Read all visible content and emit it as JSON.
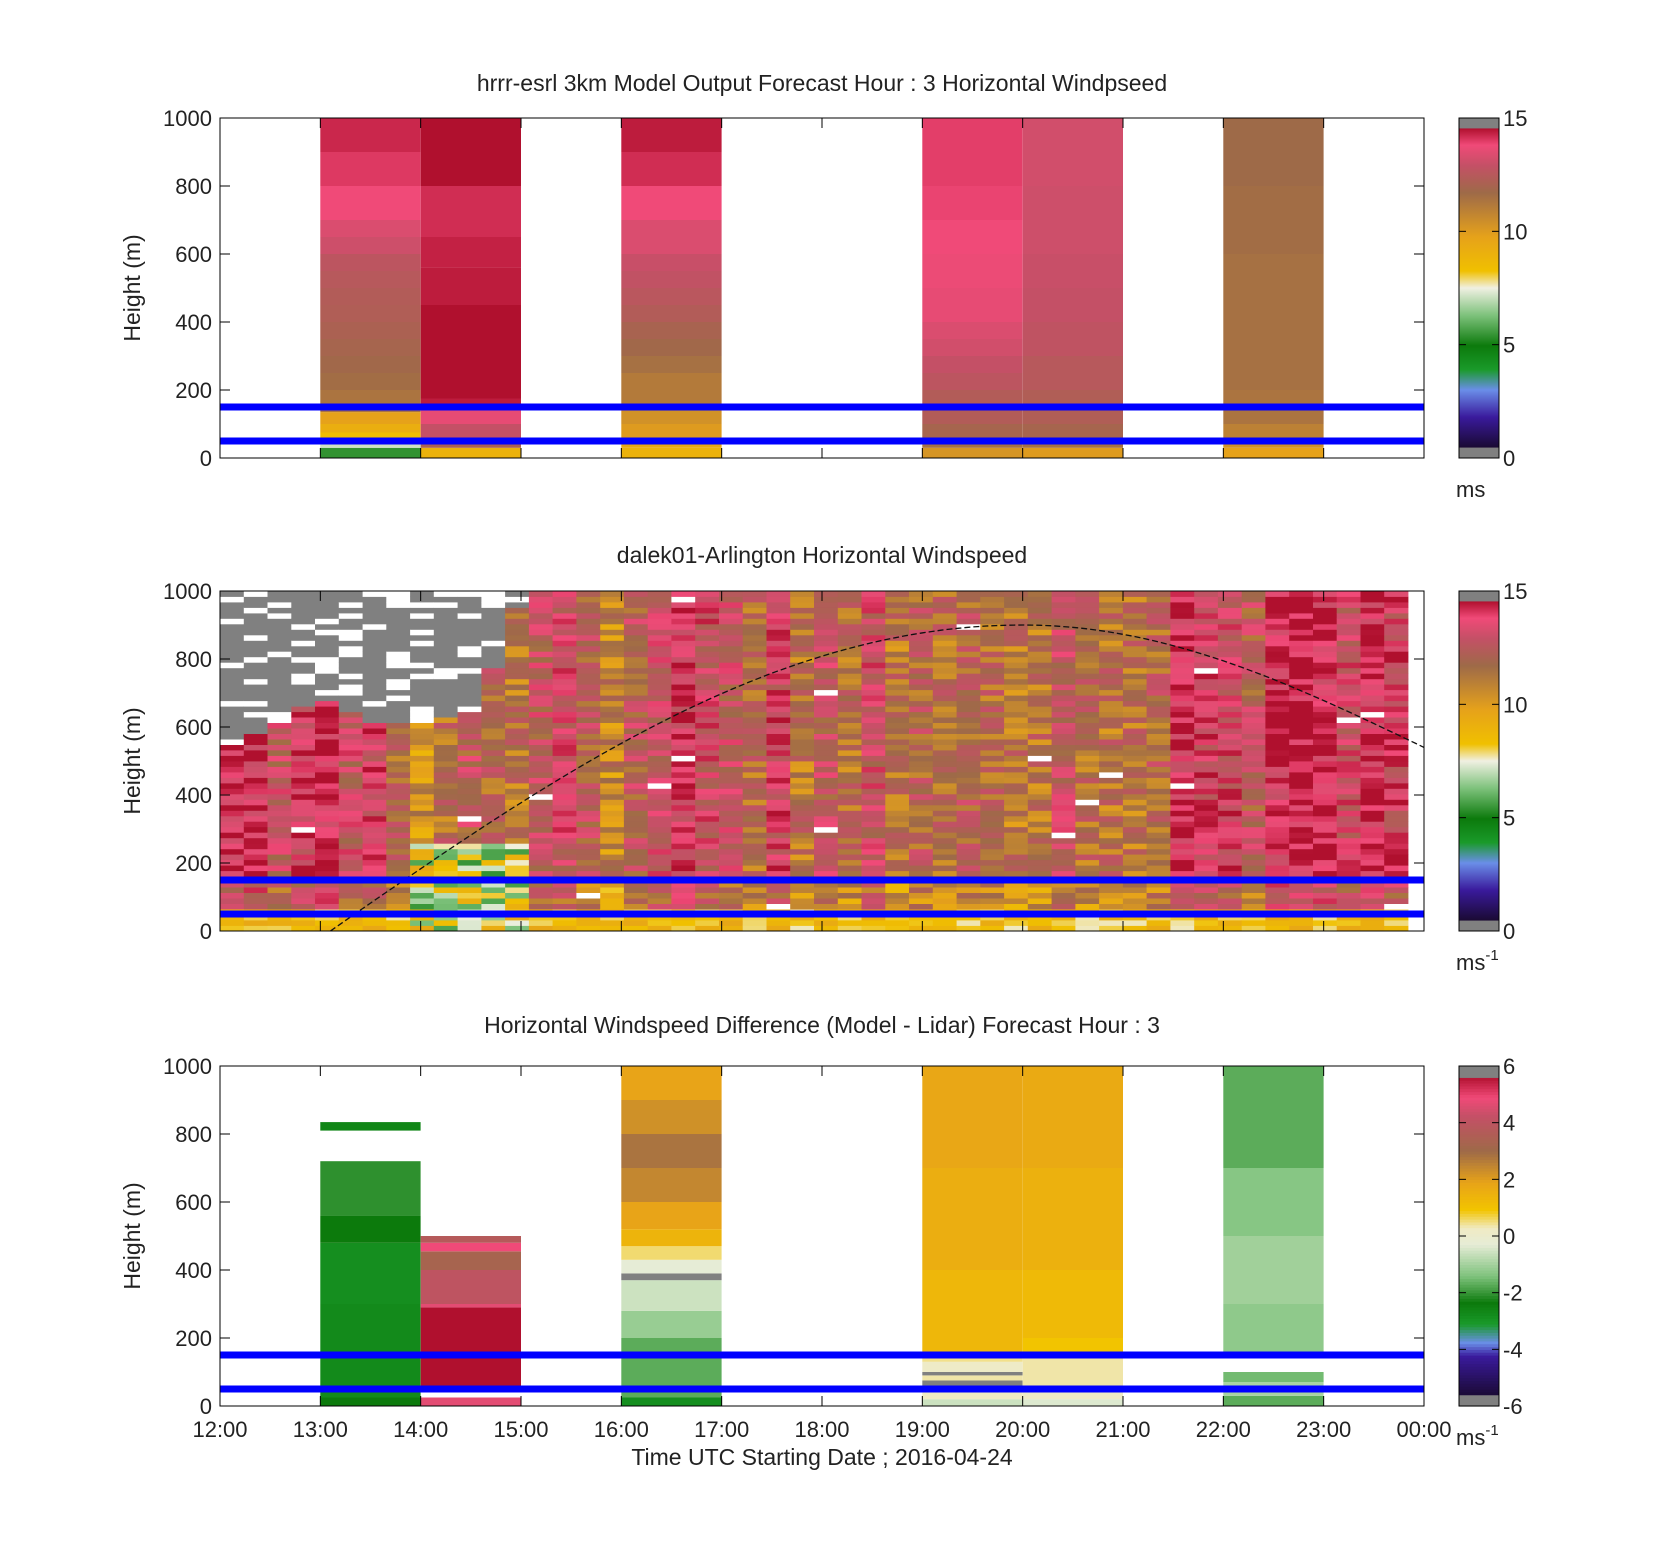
{
  "time_axis": {
    "ticks": [
      "12:00",
      "13:00",
      "14:00",
      "15:00",
      "16:00",
      "17:00",
      "18:00",
      "19:00",
      "20:00",
      "21:00",
      "22:00",
      "23:00",
      "00:00"
    ],
    "label": "Time UTC  Starting Date ; 2016-04-24"
  },
  "reference_lines": {
    "heights_m": [
      50,
      150
    ],
    "color": "#0000ff"
  },
  "chart_data": [
    {
      "type": "heatmap",
      "title": "hrrr-esrl 3km Model Output   Forecast Hour : 3 Horizontal Windpseed",
      "ylabel": "Height (m)",
      "ylim": [
        0,
        1000
      ],
      "yticks": [
        0,
        200,
        400,
        600,
        800,
        1000
      ],
      "xlim": [
        12,
        24
      ],
      "colorbar": {
        "ticks": [
          0,
          5,
          10,
          15
        ],
        "range": [
          0,
          15
        ],
        "unit": "ms",
        "unit_sup": ""
      },
      "columns": [
        {
          "start": 13,
          "end": 14,
          "rows": [
            [
              30,
              5.5
            ],
            [
              50,
              7.2
            ],
            [
              75,
              8.5
            ],
            [
              100,
              9.2
            ],
            [
              135,
              9.8
            ],
            [
              200,
              11.2
            ],
            [
              250,
              11.4
            ],
            [
              300,
              11.6
            ],
            [
              350,
              11.8
            ],
            [
              400,
              12.0
            ],
            [
              450,
              12.2
            ],
            [
              500,
              12.3
            ],
            [
              550,
              12.5
            ],
            [
              600,
              12.7
            ],
            [
              650,
              13.2
            ],
            [
              700,
              13.5
            ],
            [
              800,
              14.0
            ],
            [
              900,
              14.3
            ],
            [
              1000,
              14.6
            ]
          ]
        },
        {
          "start": 14,
          "end": 15,
          "rows": [
            [
              30,
              9.0
            ],
            [
              60,
              12.0
            ],
            [
              100,
              13.0
            ],
            [
              140,
              13.8
            ],
            [
              175,
              14.8
            ],
            [
              450,
              15.5
            ],
            [
              560,
              14.8
            ],
            [
              650,
              14.7
            ],
            [
              800,
              14.5
            ],
            [
              1000,
              15.5
            ]
          ]
        },
        {
          "start": 16,
          "end": 17,
          "rows": [
            [
              30,
              9.0
            ],
            [
              60,
              9.5
            ],
            [
              100,
              10.0
            ],
            [
              140,
              10.3
            ],
            [
              250,
              11.0
            ],
            [
              300,
              11.3
            ],
            [
              350,
              11.6
            ],
            [
              400,
              11.9
            ],
            [
              450,
              12.3
            ],
            [
              500,
              12.6
            ],
            [
              550,
              12.9
            ],
            [
              600,
              13.1
            ],
            [
              700,
              13.5
            ],
            [
              800,
              14.0
            ],
            [
              900,
              14.5
            ],
            [
              1000,
              14.8
            ]
          ]
        },
        {
          "start": 19,
          "end": 20,
          "rows": [
            [
              30,
              10.2
            ],
            [
              60,
              11.3
            ],
            [
              100,
              11.8
            ],
            [
              200,
              12.3
            ],
            [
              250,
              12.7
            ],
            [
              300,
              13.0
            ],
            [
              350,
              13.3
            ],
            [
              400,
              13.5
            ],
            [
              500,
              13.8
            ],
            [
              600,
              13.9
            ],
            [
              700,
              14.0
            ],
            [
              800,
              14.1
            ],
            [
              1000,
              14.2
            ]
          ]
        },
        {
          "start": 20,
          "end": 21,
          "rows": [
            [
              30,
              10.0
            ],
            [
              60,
              11.3
            ],
            [
              100,
              11.8
            ],
            [
              200,
              12.2
            ],
            [
              300,
              12.5
            ],
            [
              400,
              12.8
            ],
            [
              500,
              13.0
            ],
            [
              600,
              13.1
            ],
            [
              800,
              13.2
            ],
            [
              1000,
              13.3
            ]
          ]
        },
        {
          "start": 22,
          "end": 23,
          "rows": [
            [
              30,
              9.8
            ],
            [
              60,
              10.3
            ],
            [
              100,
              10.8
            ],
            [
              200,
              11.2
            ],
            [
              600,
              11.3
            ],
            [
              800,
              11.4
            ],
            [
              1000,
              11.5
            ]
          ]
        }
      ]
    },
    {
      "type": "heatmap",
      "title": "dalek01-Arlington  Horizontal Windspeed",
      "ylabel": "Height (m)",
      "ylim": [
        0,
        1000
      ],
      "yticks": [
        0,
        200,
        400,
        600,
        800,
        1000
      ],
      "xlim": [
        12,
        24
      ],
      "colorbar": {
        "ticks": [
          0,
          5,
          10,
          15
        ],
        "range": [
          0,
          15
        ],
        "unit": "ms",
        "unit_sup": "-1"
      },
      "dataTop_by_hour": [
        [
          12,
          560
        ],
        [
          12.5,
          620
        ],
        [
          13,
          700
        ],
        [
          13.5,
          620
        ],
        [
          14,
          630
        ],
        [
          14.5,
          680
        ],
        [
          15,
          1000
        ],
        [
          24,
          1000
        ]
      ],
      "hourly_mean_speed": [
        [
          12,
          13.8
        ],
        [
          12.5,
          13.2
        ],
        [
          13,
          13.6
        ],
        [
          13.5,
          12.6
        ],
        [
          14,
          10.0
        ],
        [
          14.5,
          11.5
        ],
        [
          15,
          12.5
        ],
        [
          15.5,
          12.0
        ],
        [
          16,
          11.5
        ],
        [
          16.5,
          12.8
        ],
        [
          17,
          13.2
        ],
        [
          17.5,
          12.6
        ],
        [
          18,
          11.8
        ],
        [
          18.5,
          12.2
        ],
        [
          19,
          11.2
        ],
        [
          19.5,
          10.6
        ],
        [
          20,
          11.0
        ],
        [
          20.5,
          11.8
        ],
        [
          21,
          12.2
        ],
        [
          21.5,
          13.2
        ],
        [
          22,
          12.8
        ],
        [
          22.5,
          13.5
        ],
        [
          23,
          13.8
        ],
        [
          23.5,
          13.6
        ],
        [
          24,
          13.4
        ]
      ],
      "boundary_layer_curve": {
        "start_hour": 13.1,
        "peak_hour": 20.0,
        "peak_height_m": 900,
        "end_hour": 24,
        "end_height_m": 540
      }
    },
    {
      "type": "heatmap",
      "title": "Horizontal Windspeed Difference (Model - Lidar) Forecast Hour : 3",
      "ylabel": "Height (m)",
      "ylim": [
        0,
        1000
      ],
      "yticks": [
        0,
        200,
        400,
        600,
        800,
        1000
      ],
      "xlim": [
        12,
        24
      ],
      "colorbar": {
        "ticks": [
          -6,
          -4,
          -2,
          0,
          2,
          4,
          6
        ],
        "range": [
          -6,
          6
        ],
        "unit": "ms",
        "unit_sup": "-1"
      },
      "columns": [
        {
          "start": 13,
          "end": 14,
          "rows": [
            [
              25,
              -2.5
            ],
            [
              300,
              -2.9
            ],
            [
              480,
              -3.0
            ],
            [
              560,
              -2.5
            ],
            [
              720,
              -2.2
            ],
            [
              810,
              null
            ],
            [
              835,
              -2.8
            ],
            [
              1000,
              null
            ]
          ]
        },
        {
          "start": 14,
          "end": 15,
          "rows": [
            [
              25,
              5.0
            ],
            [
              40,
              null
            ],
            [
              290,
              6.5
            ],
            [
              300,
              5.0
            ],
            [
              400,
              4.3
            ],
            [
              455,
              3.5
            ],
            [
              480,
              5.2
            ],
            [
              500,
              4.0
            ],
            [
              1000,
              null
            ]
          ]
        },
        {
          "start": 16,
          "end": 17,
          "rows": [
            [
              25,
              -3.0
            ],
            [
              200,
              -1.8
            ],
            [
              280,
              -1.2
            ],
            [
              370,
              -0.6
            ],
            [
              390,
              -6.5
            ],
            [
              430,
              -0.3
            ],
            [
              470,
              0.6
            ],
            [
              520,
              1.5
            ],
            [
              600,
              2.0
            ],
            [
              700,
              2.6
            ],
            [
              800,
              3.0
            ],
            [
              900,
              2.4
            ],
            [
              1000,
              2.0
            ]
          ]
        },
        {
          "start": 19,
          "end": 20,
          "rows": [
            [
              20,
              -0.6
            ],
            [
              50,
              0.3
            ],
            [
              75,
              -6.5
            ],
            [
              90,
              0.4
            ],
            [
              100,
              -6.5
            ],
            [
              130,
              0.2
            ],
            [
              160,
              0.5
            ],
            [
              400,
              1.4
            ],
            [
              700,
              1.7
            ],
            [
              1000,
              1.9
            ]
          ]
        },
        {
          "start": 20,
          "end": 21,
          "rows": [
            [
              20,
              -0.4
            ],
            [
              60,
              0.2
            ],
            [
              140,
              0.4
            ],
            [
              200,
              1.0
            ],
            [
              400,
              1.3
            ],
            [
              700,
              1.6
            ],
            [
              1000,
              1.8
            ]
          ]
        },
        {
          "start": 22,
          "end": 23,
          "rows": [
            [
              30,
              -1.8
            ],
            [
              70,
              -1.0
            ],
            [
              100,
              -1.6
            ],
            [
              140,
              null
            ],
            [
              300,
              -1.3
            ],
            [
              500,
              -1.1
            ],
            [
              700,
              -1.4
            ],
            [
              1000,
              -1.8
            ]
          ]
        }
      ]
    }
  ]
}
